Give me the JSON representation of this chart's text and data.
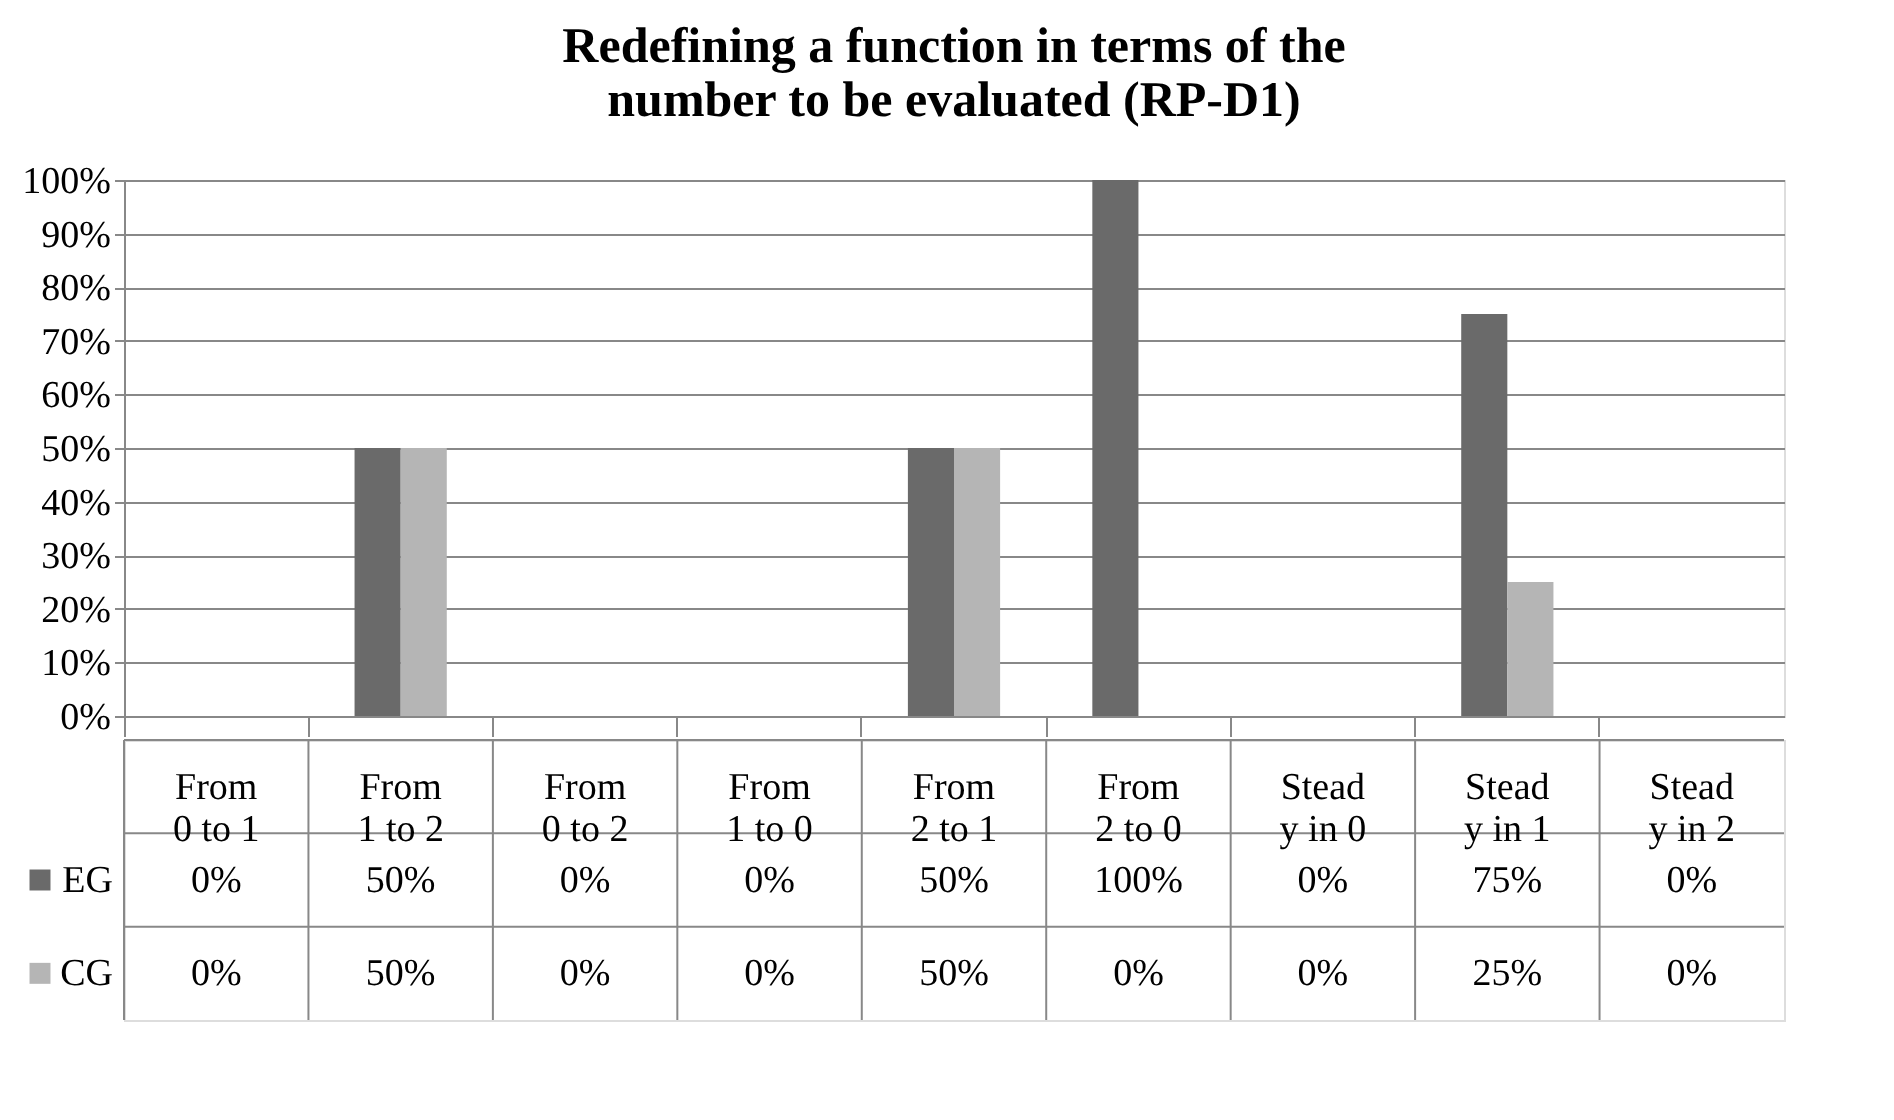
{
  "chart_data": {
    "type": "bar",
    "title": "Redefining a function in terms of the number to be evaluated (RP-D1)",
    "categories": [
      "From 0 to 1",
      "From 1 to 2",
      "From 0 to 2",
      "From 1 to 0",
      "From 2 to 1",
      "From 2 to 0",
      "Steady in 0",
      "Steady in 1",
      "Steady in 2"
    ],
    "series": [
      {
        "name": "EG",
        "color": "#6a6a6a",
        "values": [
          0,
          50,
          0,
          0,
          50,
          100,
          0,
          75,
          0
        ],
        "value_labels": [
          "0%",
          "50%",
          "0%",
          "0%",
          "50%",
          "100%",
          "0%",
          "75%",
          "0%"
        ]
      },
      {
        "name": "CG",
        "color": "#b5b5b5",
        "values": [
          0,
          50,
          0,
          0,
          50,
          0,
          0,
          25,
          0
        ],
        "value_labels": [
          "0%",
          "50%",
          "0%",
          "0%",
          "50%",
          "0%",
          "0%",
          "25%",
          "0%"
        ]
      }
    ],
    "ylim": [
      0,
      100
    ],
    "yticks": [
      {
        "value": 0,
        "label": "0%"
      },
      {
        "value": 10,
        "label": "10%"
      },
      {
        "value": 20,
        "label": "20%"
      },
      {
        "value": 30,
        "label": "30%"
      },
      {
        "value": 40,
        "label": "40%"
      },
      {
        "value": 50,
        "label": "50%"
      },
      {
        "value": 60,
        "label": "60%"
      },
      {
        "value": 70,
        "label": "70%"
      },
      {
        "value": 80,
        "label": "80%"
      },
      {
        "value": 90,
        "label": "90%"
      },
      {
        "value": 100,
        "label": "100%"
      }
    ],
    "grid": "y",
    "legend": "bottom left"
  }
}
